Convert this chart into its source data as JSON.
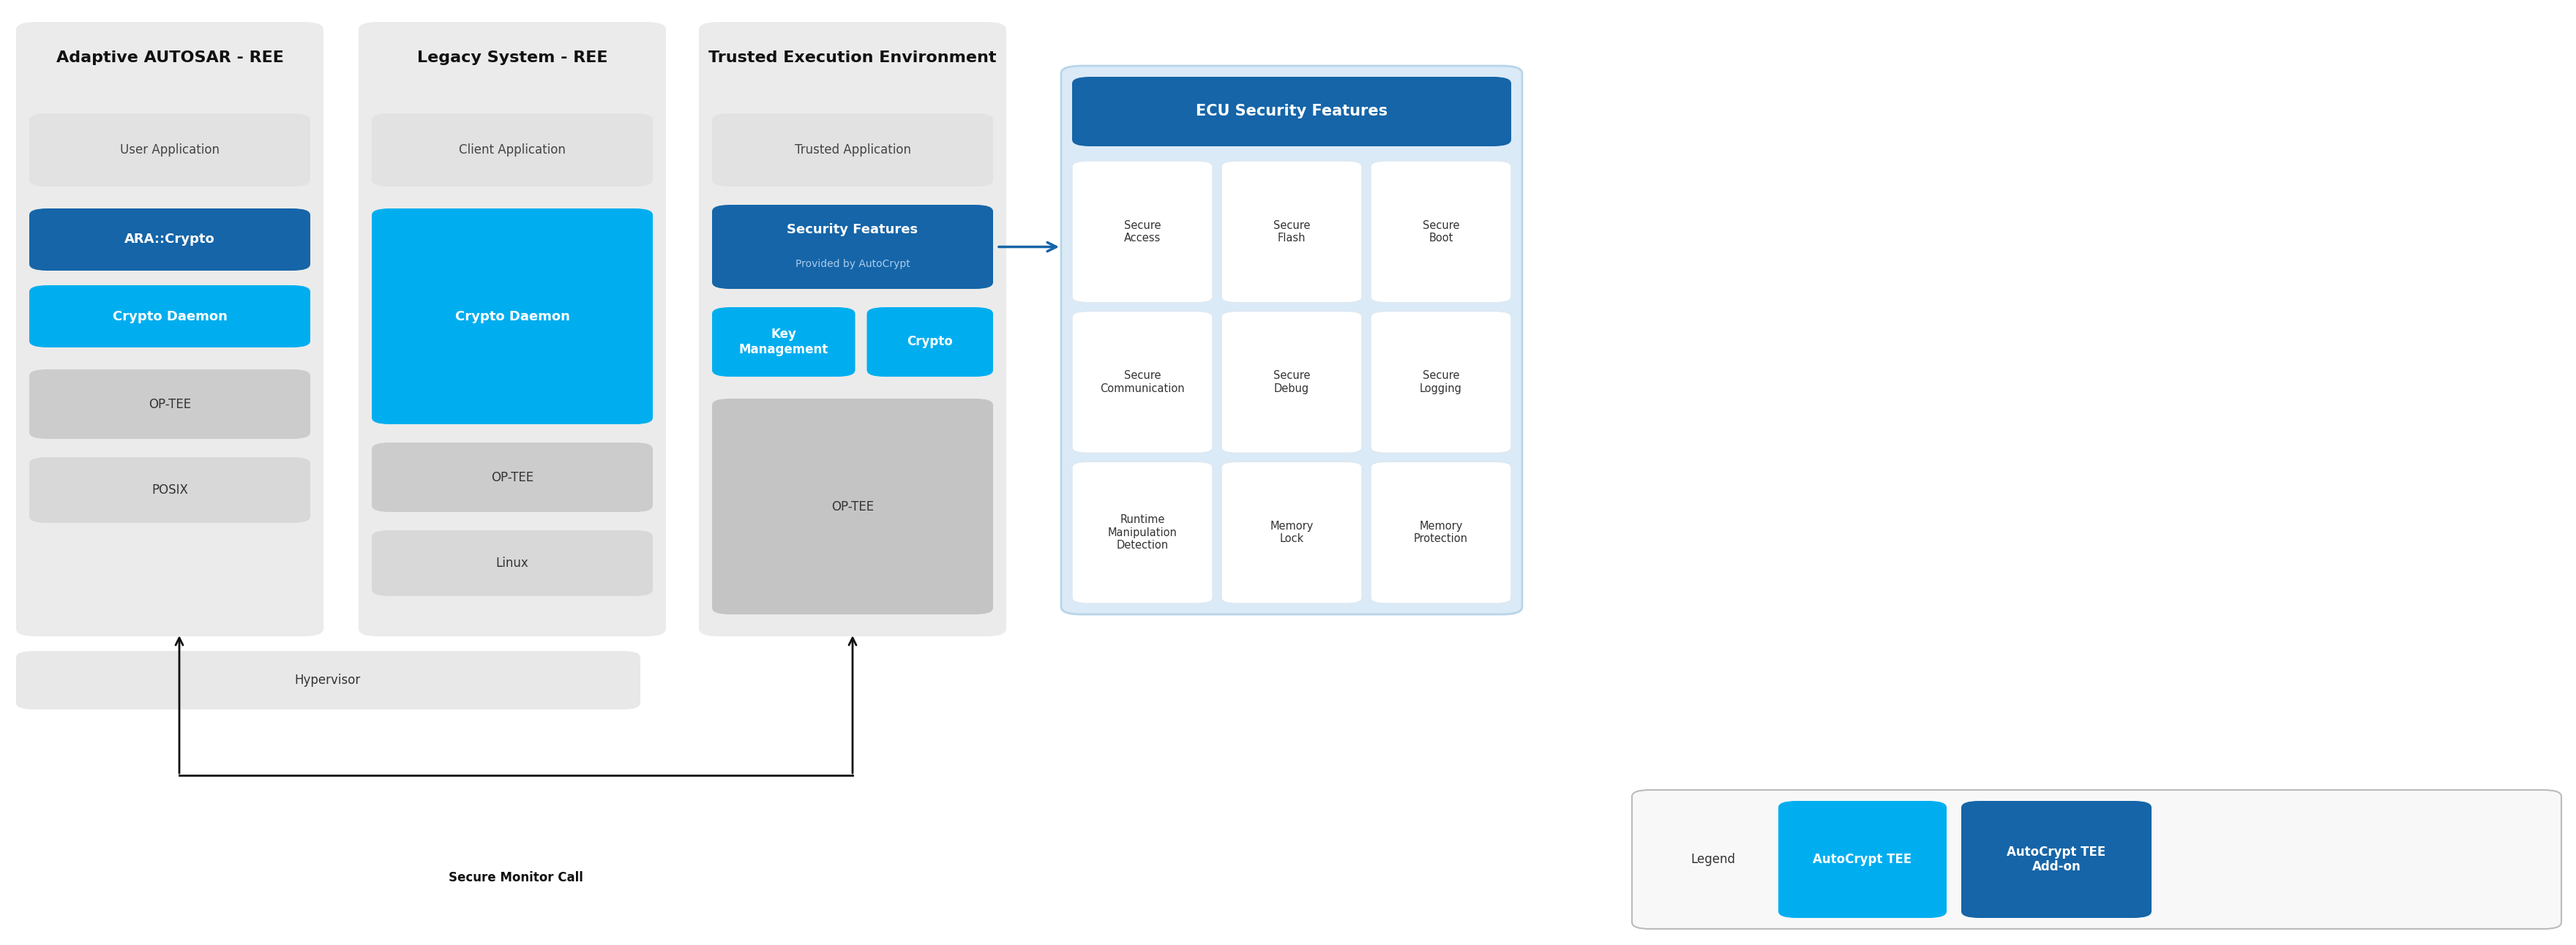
{
  "bg_color": "#ffffff",
  "box_dark_blue": "#1565a8",
  "box_light_blue": "#00aeef",
  "ecu_bg": "#dbeaf7",
  "ecu_header": "#1565a8",
  "panel1_title": "Adaptive AUTOSAR - REE",
  "panel2_title": "Legacy System - REE",
  "panel3_title": "Trusted Execution Environment",
  "cell_labels": [
    [
      "Secure\nAccess",
      "Secure\nFlash",
      "Secure\nBoot"
    ],
    [
      "Secure\nCommunication",
      "Secure\nDebug",
      "Secure\nLogging"
    ],
    [
      "Runtime\nManipulation\nDetection",
      "Memory\nLock",
      "Memory\nProtection"
    ]
  ],
  "legend_label": "Legend",
  "btn1_label": "AutoCrypt TEE",
  "btn2_label": "AutoCrypt TEE\nAdd-on",
  "smc_label": "Secure Monitor Call",
  "ecu_title": "ECU Security Features",
  "sf_label1": "Security Features",
  "sf_label2": "Provided by AutoCrypt"
}
